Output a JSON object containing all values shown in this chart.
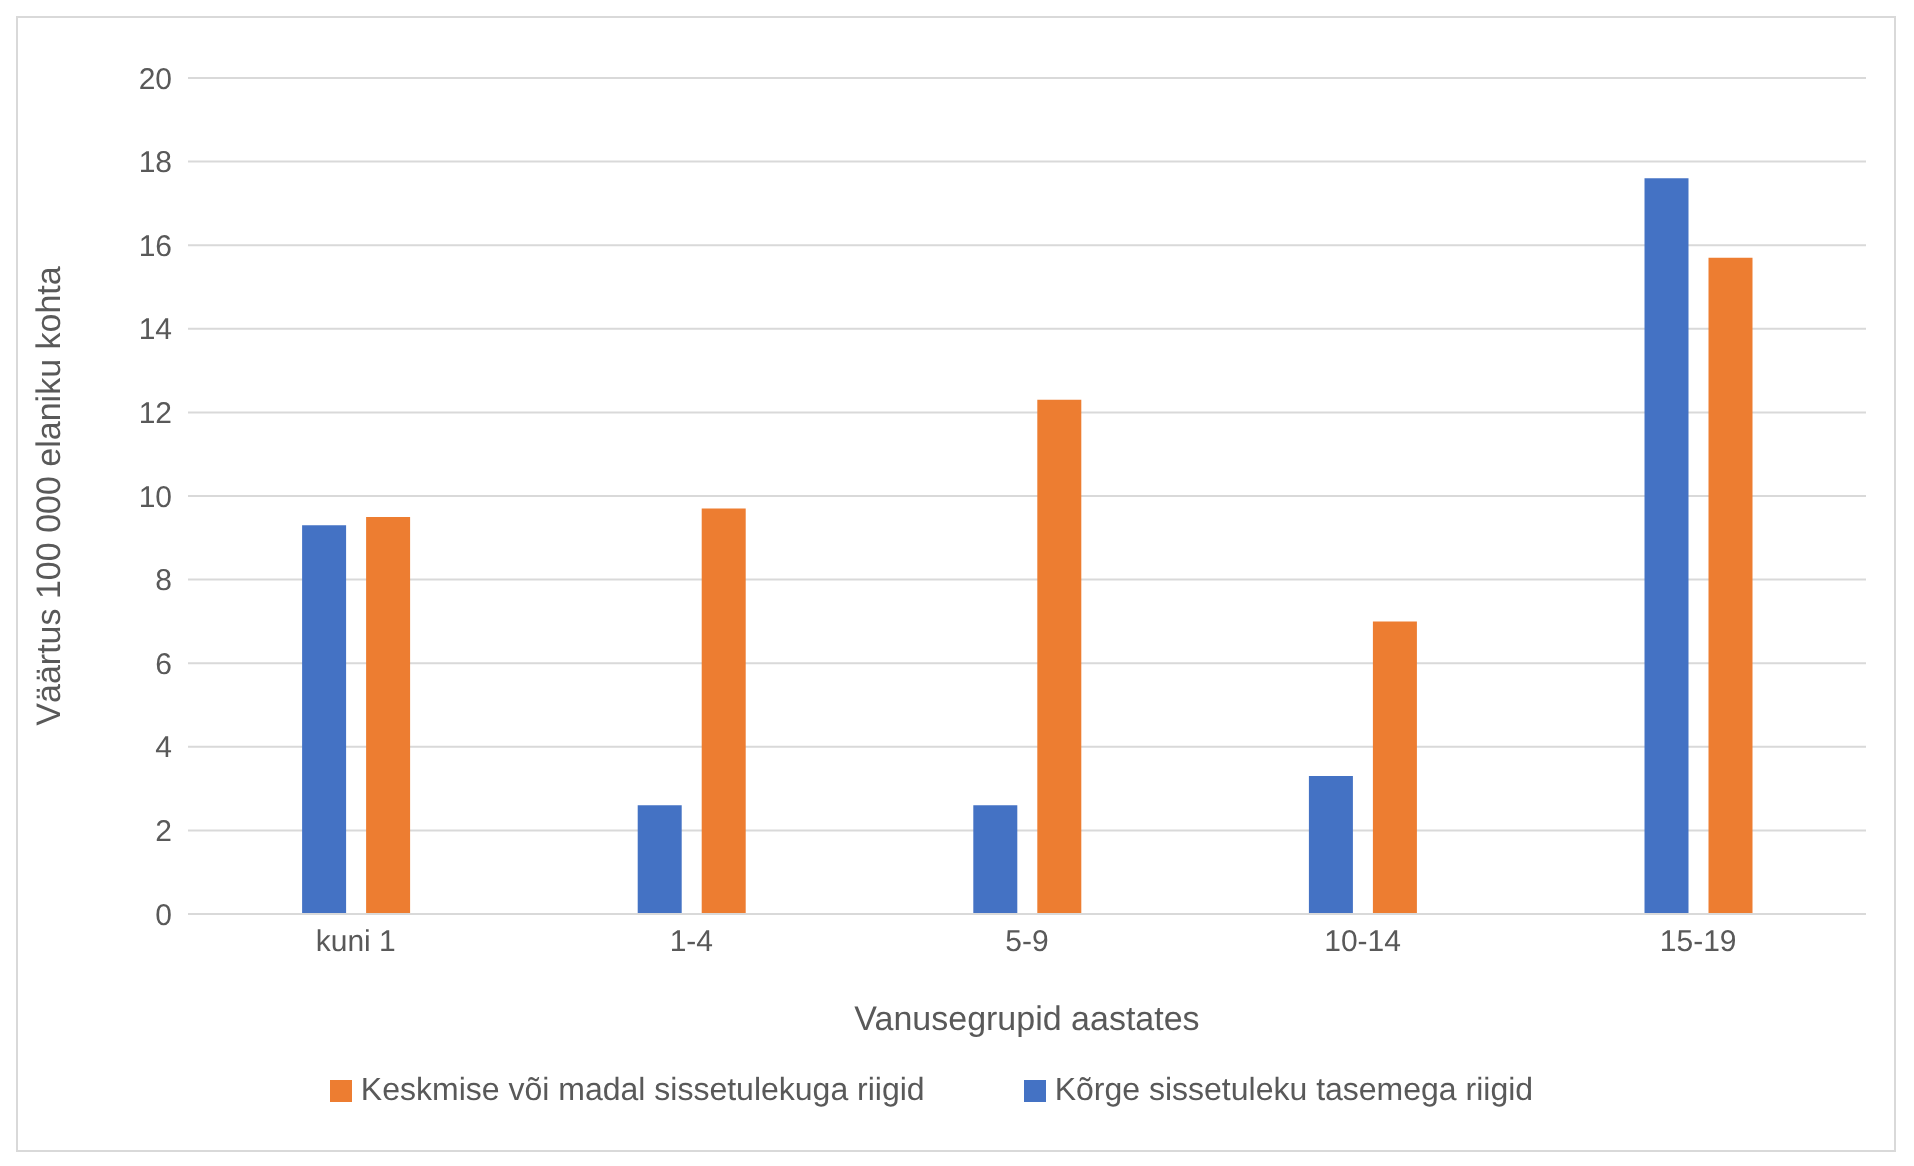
{
  "chart_data": {
    "type": "bar",
    "xlabel": "Vanusegrupid aastates",
    "ylabel": "Väärtus 100 000 elaniku kohta",
    "categories": [
      "kuni 1",
      "1-4",
      "5-9",
      "10-14",
      "15-19"
    ],
    "series": [
      {
        "name": "Kõrge sissetuleku tasemega riigid",
        "color": "#4472c4",
        "values": [
          9.3,
          2.6,
          2.6,
          3.3,
          17.6
        ]
      },
      {
        "name": "Keskmise või madal sissetulekuga riigid",
        "color": "#ed7d31",
        "values": [
          9.5,
          9.7,
          12.3,
          7.0,
          15.7
        ]
      }
    ],
    "ylim": [
      0,
      20
    ],
    "yticks": [
      0,
      2,
      4,
      6,
      8,
      10,
      12,
      14,
      16,
      18,
      20
    ],
    "grid": "y",
    "legend": "bottom"
  }
}
